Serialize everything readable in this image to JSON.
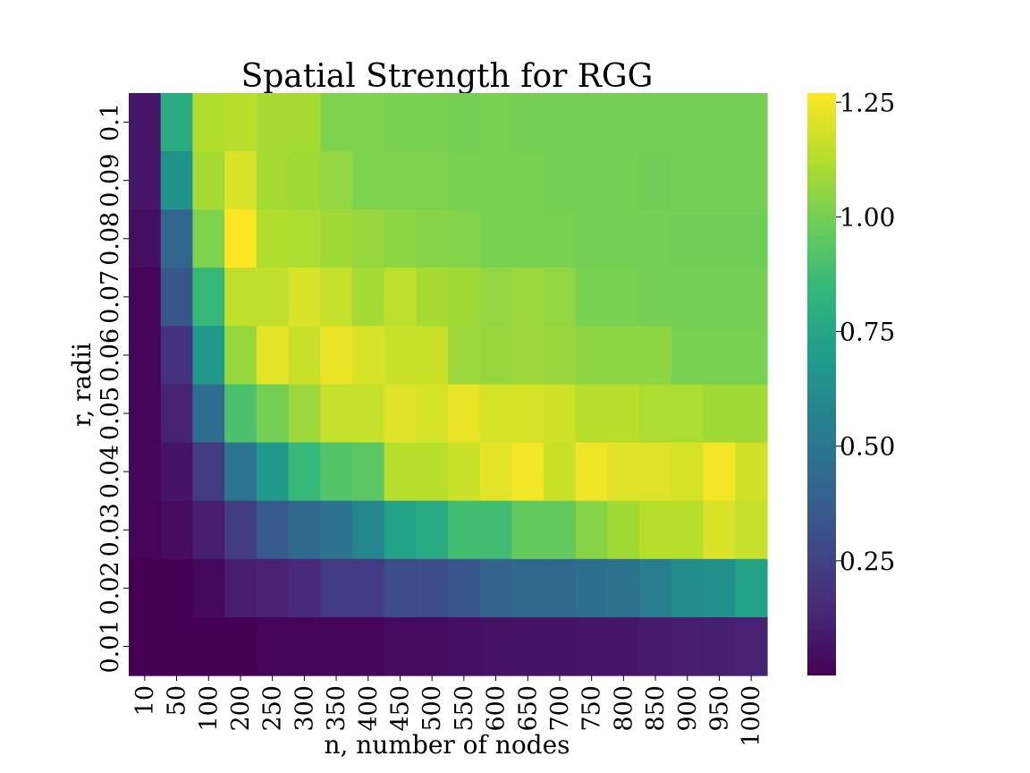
{
  "chart_data": {
    "type": "heatmap",
    "title": "Spatial Strength for RGG",
    "xlabel": "n, number of nodes",
    "ylabel": "r, radii",
    "x_categories": [
      "10",
      "50",
      "100",
      "200",
      "250",
      "300",
      "350",
      "400",
      "450",
      "500",
      "550",
      "600",
      "650",
      "700",
      "750",
      "800",
      "850",
      "900",
      "950",
      "1000"
    ],
    "y_categories": [
      "0.1",
      "0.09",
      "0.08",
      "0.07",
      "0.06",
      "0.05",
      "0.04",
      "0.03",
      "0.02",
      "0.01"
    ],
    "colormap": "viridis",
    "vmin": 0.0,
    "vmax": 1.27,
    "colorbar_ticks": [
      "0.25",
      "0.50",
      "0.75",
      "1.00",
      "1.25"
    ],
    "colorbar_tick_values": [
      0.25,
      0.5,
      0.75,
      1.0,
      1.25
    ],
    "values": [
      [
        0.08,
        0.78,
        1.12,
        1.13,
        1.1,
        1.1,
        1.02,
        1.02,
        1.01,
        1.01,
        1.0,
        1.01,
        1.0,
        1.0,
        1.0,
        1.0,
        1.0,
        1.0,
        1.0,
        1.0
      ],
      [
        0.08,
        0.65,
        1.1,
        1.2,
        1.1,
        1.09,
        1.06,
        1.02,
        1.02,
        1.02,
        1.01,
        1.01,
        1.01,
        1.0,
        1.0,
        1.0,
        0.99,
        1.0,
        1.0,
        1.0
      ],
      [
        0.05,
        0.42,
        1.02,
        1.27,
        1.12,
        1.11,
        1.09,
        1.07,
        1.05,
        1.04,
        1.03,
        1.01,
        1.01,
        1.01,
        1.0,
        1.0,
        1.0,
        0.99,
        0.99,
        0.99
      ],
      [
        0.01,
        0.34,
        0.85,
        1.15,
        1.15,
        1.2,
        1.16,
        1.1,
        1.14,
        1.1,
        1.09,
        1.06,
        1.08,
        1.06,
        1.01,
        1.01,
        1.0,
        1.0,
        1.0,
        1.0
      ],
      [
        0.01,
        0.18,
        0.68,
        1.07,
        1.22,
        1.17,
        1.23,
        1.2,
        1.17,
        1.17,
        1.08,
        1.07,
        1.08,
        1.07,
        1.05,
        1.05,
        1.05,
        1.01,
        1.01,
        1.01
      ],
      [
        0.01,
        0.12,
        0.45,
        0.9,
        1.0,
        1.08,
        1.16,
        1.16,
        1.21,
        1.19,
        1.23,
        1.19,
        1.19,
        1.18,
        1.13,
        1.13,
        1.11,
        1.11,
        1.09,
        1.09
      ],
      [
        0.02,
        0.07,
        0.22,
        0.5,
        0.68,
        0.85,
        0.92,
        0.94,
        1.13,
        1.13,
        1.17,
        1.22,
        1.25,
        1.17,
        1.24,
        1.21,
        1.21,
        1.19,
        1.25,
        1.18
      ],
      [
        0.01,
        0.04,
        0.1,
        0.23,
        0.36,
        0.43,
        0.48,
        0.58,
        0.73,
        0.77,
        0.88,
        0.88,
        0.96,
        0.96,
        1.04,
        1.09,
        1.13,
        1.13,
        1.2,
        1.16
      ],
      [
        0.0,
        0.0,
        0.03,
        0.1,
        0.12,
        0.14,
        0.22,
        0.22,
        0.29,
        0.3,
        0.34,
        0.4,
        0.43,
        0.43,
        0.46,
        0.49,
        0.54,
        0.62,
        0.64,
        0.73
      ],
      [
        0.0,
        0.0,
        0.0,
        0.0,
        0.01,
        0.01,
        0.02,
        0.02,
        0.04,
        0.04,
        0.05,
        0.06,
        0.07,
        0.07,
        0.08,
        0.08,
        0.09,
        0.1,
        0.11,
        0.12
      ]
    ]
  }
}
